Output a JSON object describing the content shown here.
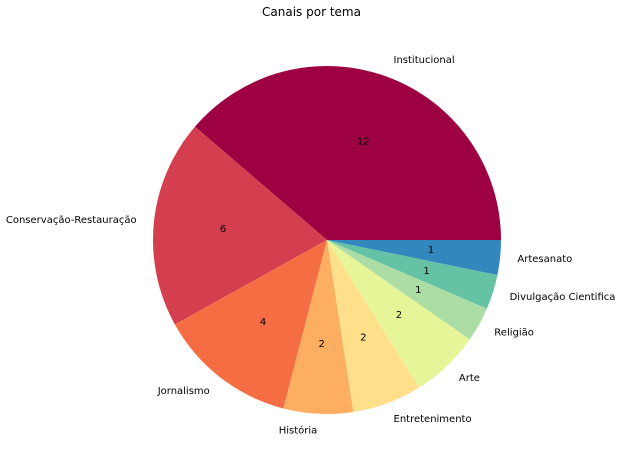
{
  "chart_data": {
    "type": "pie",
    "title": "Canais por tema",
    "categories": [
      "Institucional",
      "Conservação-Restauração",
      "Jornalismo",
      "História",
      "Entretenimento",
      "Arte",
      "Religião",
      "Divulgação Cientifica",
      "Artesanato"
    ],
    "values": [
      12,
      6,
      4,
      2,
      2,
      2,
      1,
      1,
      1
    ],
    "colors": [
      "#9e0142",
      "#d53e4f",
      "#f46d43",
      "#fdae61",
      "#fee08b",
      "#e6f598",
      "#abdda4",
      "#66c2a5",
      "#3288bd"
    ],
    "start_angle_deg": 0,
    "direction": "counterclockwise",
    "legend": "none"
  }
}
